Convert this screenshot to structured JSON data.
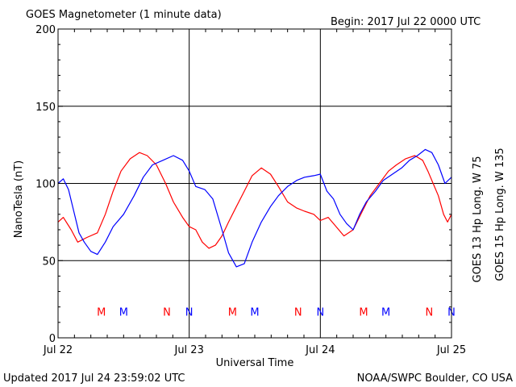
{
  "chart_data": {
    "type": "line",
    "title": "GOES Magnetometer (1 minute data)",
    "begin_label": "Begin:  2017 Jul 22 0000 UTC",
    "xlabel": "Universal Time",
    "ylabel": "NanoTesla (nT)",
    "updated": "Updated 2017 Jul 24 23:59:02 UTC",
    "credit": "NOAA/SWPC Boulder, CO USA",
    "x_ticks": [
      "Jul 22",
      "Jul 23",
      "Jul 24",
      "Jul 25"
    ],
    "y_ticks": [
      "0",
      "50",
      "100",
      "150",
      "200"
    ],
    "xlim_days": [
      0,
      3
    ],
    "ylim": [
      0,
      200
    ],
    "grid": true,
    "series": [
      {
        "name": "GOES 13 Hp  Long. W 75",
        "color": "#ff0000",
        "x_days": [
          0.0,
          0.04,
          0.1,
          0.15,
          0.22,
          0.3,
          0.36,
          0.42,
          0.48,
          0.55,
          0.62,
          0.68,
          0.75,
          0.82,
          0.88,
          0.95,
          1.0,
          1.05,
          1.1,
          1.15,
          1.2,
          1.25,
          1.3,
          1.36,
          1.42,
          1.48,
          1.55,
          1.62,
          1.68,
          1.75,
          1.82,
          1.88,
          1.95,
          2.0,
          2.06,
          2.12,
          2.18,
          2.25,
          2.32,
          2.38,
          2.45,
          2.52,
          2.58,
          2.65,
          2.72,
          2.78,
          2.82,
          2.86,
          2.9,
          2.94,
          2.97,
          3.0
        ],
        "values": [
          75,
          78,
          70,
          62,
          65,
          68,
          80,
          95,
          108,
          116,
          120,
          118,
          112,
          100,
          88,
          78,
          72,
          70,
          62,
          58,
          60,
          66,
          75,
          85,
          95,
          105,
          110,
          106,
          98,
          88,
          84,
          82,
          80,
          76,
          78,
          72,
          66,
          70,
          82,
          92,
          100,
          108,
          112,
          116,
          118,
          115,
          108,
          100,
          92,
          80,
          75,
          80
        ]
      },
      {
        "name": "GOES 15 Hp  Long. W 135",
        "color": "#0000ff",
        "x_days": [
          0.0,
          0.04,
          0.08,
          0.12,
          0.16,
          0.2,
          0.25,
          0.3,
          0.36,
          0.42,
          0.5,
          0.58,
          0.65,
          0.72,
          0.8,
          0.88,
          0.95,
          1.0,
          1.05,
          1.12,
          1.18,
          1.25,
          1.3,
          1.36,
          1.42,
          1.48,
          1.55,
          1.62,
          1.68,
          1.75,
          1.82,
          1.88,
          1.95,
          2.0,
          2.05,
          2.1,
          2.15,
          2.2,
          2.25,
          2.3,
          2.35,
          2.42,
          2.48,
          2.55,
          2.62,
          2.68,
          2.74,
          2.8,
          2.85,
          2.9,
          2.95,
          3.0
        ],
        "values": [
          100,
          103,
          96,
          82,
          68,
          62,
          56,
          54,
          62,
          72,
          80,
          92,
          104,
          112,
          115,
          118,
          115,
          108,
          98,
          96,
          90,
          70,
          55,
          46,
          48,
          62,
          75,
          85,
          92,
          98,
          102,
          104,
          105,
          106,
          95,
          90,
          80,
          74,
          70,
          80,
          88,
          95,
          102,
          106,
          110,
          115,
          118,
          122,
          120,
          112,
          100,
          104
        ]
      }
    ],
    "markers": {
      "y_value": 17,
      "items": [
        {
          "label": "M",
          "day": 0.33,
          "color": "#ff0000"
        },
        {
          "label": "M",
          "day": 0.5,
          "color": "#0000ff"
        },
        {
          "label": "N",
          "day": 0.83,
          "color": "#ff0000"
        },
        {
          "label": "N",
          "day": 1.0,
          "color": "#0000ff"
        },
        {
          "label": "M",
          "day": 1.33,
          "color": "#ff0000"
        },
        {
          "label": "M",
          "day": 1.5,
          "color": "#0000ff"
        },
        {
          "label": "N",
          "day": 1.83,
          "color": "#ff0000"
        },
        {
          "label": "N",
          "day": 2.0,
          "color": "#0000ff"
        },
        {
          "label": "M",
          "day": 2.33,
          "color": "#ff0000"
        },
        {
          "label": "M",
          "day": 2.5,
          "color": "#0000ff"
        },
        {
          "label": "N",
          "day": 2.83,
          "color": "#ff0000"
        },
        {
          "label": "N",
          "day": 3.0,
          "color": "#0000ff"
        }
      ]
    }
  }
}
